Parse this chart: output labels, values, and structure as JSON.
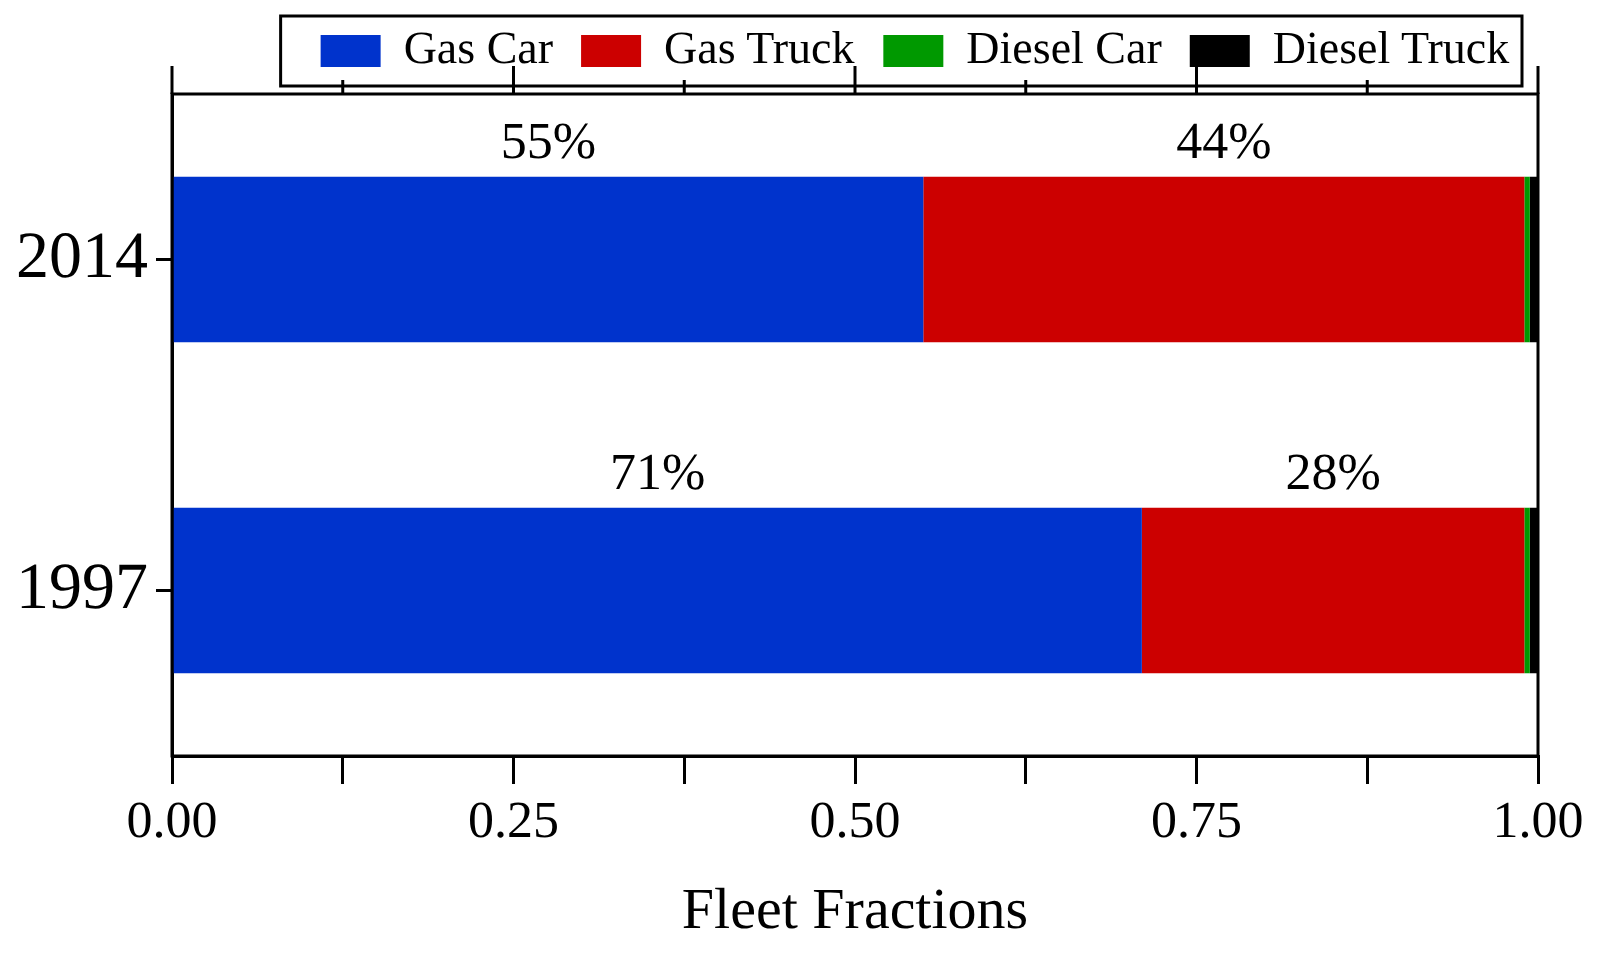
{
  "chart_data": {
    "type": "bar",
    "orientation": "horizontal",
    "stacked": true,
    "xlabel": "Fleet Fractions",
    "categories": [
      "2014",
      "1997"
    ],
    "series": [
      {
        "name": "Gas Car",
        "color": "#0033cc",
        "values": [
          0.55,
          0.71
        ],
        "value_labels": [
          "55%",
          "71%"
        ]
      },
      {
        "name": "Gas Truck",
        "color": "#cc0000",
        "values": [
          0.44,
          0.28
        ],
        "value_labels": [
          "44%",
          "28%"
        ]
      },
      {
        "name": "Diesel Car",
        "color": "#009900",
        "values": [
          0.004,
          0.004
        ]
      },
      {
        "name": "Diesel Truck",
        "color": "#000000",
        "values": [
          0.006,
          0.006
        ]
      }
    ],
    "xlim": [
      0,
      1
    ],
    "xticks": [
      {
        "value": 0,
        "label": "0.00"
      },
      {
        "value": 0.125,
        "label": null
      },
      {
        "value": 0.25,
        "label": "0.25"
      },
      {
        "value": 0.375,
        "label": null
      },
      {
        "value": 0.5,
        "label": "0.50"
      },
      {
        "value": 0.625,
        "label": null
      },
      {
        "value": 0.75,
        "label": "0.75"
      },
      {
        "value": 0.875,
        "label": null
      },
      {
        "value": 1,
        "label": "1.00"
      }
    ],
    "grid": false,
    "legend": "top"
  }
}
